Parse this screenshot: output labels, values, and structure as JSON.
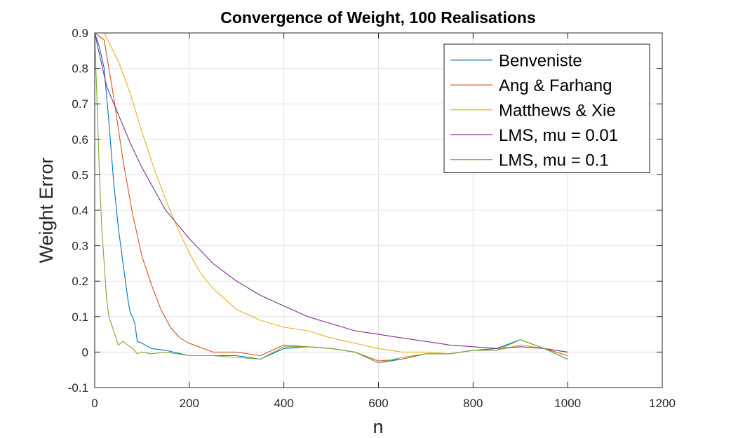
{
  "chart_data": {
    "type": "line",
    "title": "Convergence of Weight, 100 Realisations",
    "xlabel": "n",
    "ylabel": "Weight Error",
    "xlim": [
      0,
      1200
    ],
    "ylim": [
      -0.1,
      0.9
    ],
    "xticks": [
      0,
      200,
      400,
      600,
      800,
      1000,
      1200
    ],
    "yticks": [
      -0.1,
      0,
      0.1,
      0.2,
      0.3,
      0.4,
      0.5,
      0.6,
      0.7,
      0.8,
      0.9
    ],
    "xtick_labels": [
      "0",
      "200",
      "400",
      "600",
      "800",
      "1000",
      "1200"
    ],
    "ytick_labels": [
      "-0.1",
      "0",
      "0.1",
      "0.2",
      "0.3",
      "0.4",
      "0.5",
      "0.6",
      "0.7",
      "0.8",
      "0.9"
    ],
    "grid": true,
    "legend_position": "top-right",
    "series": [
      {
        "name": "Benveniste",
        "color": "#0072BD",
        "x": [
          0,
          10,
          20,
          30,
          40,
          50,
          60,
          70,
          75,
          80,
          85,
          90,
          100,
          120,
          150,
          200,
          250,
          300,
          350,
          400,
          450,
          500,
          550,
          600,
          650,
          700,
          750,
          800,
          850,
          900,
          950,
          1000
        ],
        "y": [
          0.9,
          0.86,
          0.8,
          0.65,
          0.48,
          0.35,
          0.25,
          0.15,
          0.11,
          0.1,
          0.08,
          0.03,
          0.025,
          0.01,
          0.005,
          -0.01,
          -0.01,
          -0.01,
          -0.02,
          0.01,
          0.015,
          0.01,
          0.0,
          -0.03,
          -0.02,
          -0.005,
          -0.005,
          0.005,
          0.01,
          0.035,
          0.01,
          -0.02
        ]
      },
      {
        "name": "Ang & Farhang",
        "color": "#D95319",
        "x": [
          0,
          20,
          40,
          60,
          80,
          100,
          120,
          140,
          160,
          180,
          200,
          250,
          300,
          350,
          400,
          450,
          500,
          550,
          600,
          650,
          700,
          750,
          800,
          850,
          900,
          950,
          1000
        ],
        "y": [
          0.9,
          0.88,
          0.72,
          0.54,
          0.39,
          0.27,
          0.19,
          0.12,
          0.07,
          0.04,
          0.025,
          0.0,
          0.0,
          -0.01,
          0.02,
          0.015,
          0.01,
          0.0,
          -0.025,
          -0.02,
          -0.005,
          -0.005,
          0.005,
          0.005,
          0.02,
          0.01,
          -0.01
        ]
      },
      {
        "name": "Matthews & Xie",
        "color": "#EDB120",
        "x": [
          0,
          20,
          50,
          75,
          100,
          125,
          150,
          175,
          200,
          225,
          250,
          300,
          350,
          400,
          450,
          500,
          550,
          600,
          650,
          700,
          750,
          800,
          850,
          900,
          950,
          1000
        ],
        "y": [
          0.9,
          0.9,
          0.82,
          0.73,
          0.62,
          0.52,
          0.43,
          0.35,
          0.28,
          0.22,
          0.18,
          0.12,
          0.09,
          0.07,
          0.06,
          0.04,
          0.025,
          0.01,
          0.0,
          0.0,
          -0.005,
          0.005,
          0.005,
          0.02,
          0.01,
          0.0
        ]
      },
      {
        "name": "LMS, mu = 0.01",
        "color": "#7E2F8E",
        "x": [
          0,
          25,
          50,
          75,
          100,
          125,
          150,
          175,
          200,
          250,
          300,
          350,
          400,
          450,
          500,
          550,
          600,
          650,
          700,
          750,
          800,
          850,
          900,
          950,
          1000
        ],
        "y": [
          0.9,
          0.75,
          0.67,
          0.59,
          0.52,
          0.46,
          0.4,
          0.36,
          0.32,
          0.25,
          0.2,
          0.16,
          0.13,
          0.1,
          0.08,
          0.06,
          0.05,
          0.04,
          0.03,
          0.02,
          0.015,
          0.01,
          0.015,
          0.01,
          0.0
        ]
      },
      {
        "name": "LMS, mu = 0.1",
        "color": "#77AC30",
        "x": [
          0,
          5,
          10,
          15,
          20,
          25,
          30,
          35,
          40,
          45,
          50,
          60,
          70,
          80,
          90,
          100,
          120,
          150,
          200,
          250,
          300,
          350,
          400,
          450,
          500,
          550,
          600,
          650,
          700,
          750,
          800,
          850,
          900,
          950,
          1000
        ],
        "y": [
          0.9,
          0.7,
          0.5,
          0.35,
          0.25,
          0.15,
          0.1,
          0.08,
          0.06,
          0.04,
          0.02,
          0.03,
          0.02,
          0.01,
          -0.005,
          0.0,
          -0.005,
          0.0,
          -0.01,
          -0.01,
          -0.015,
          -0.02,
          0.015,
          0.015,
          0.01,
          0.0,
          -0.03,
          -0.015,
          -0.005,
          -0.005,
          0.005,
          0.005,
          0.035,
          0.01,
          -0.02
        ]
      }
    ]
  }
}
